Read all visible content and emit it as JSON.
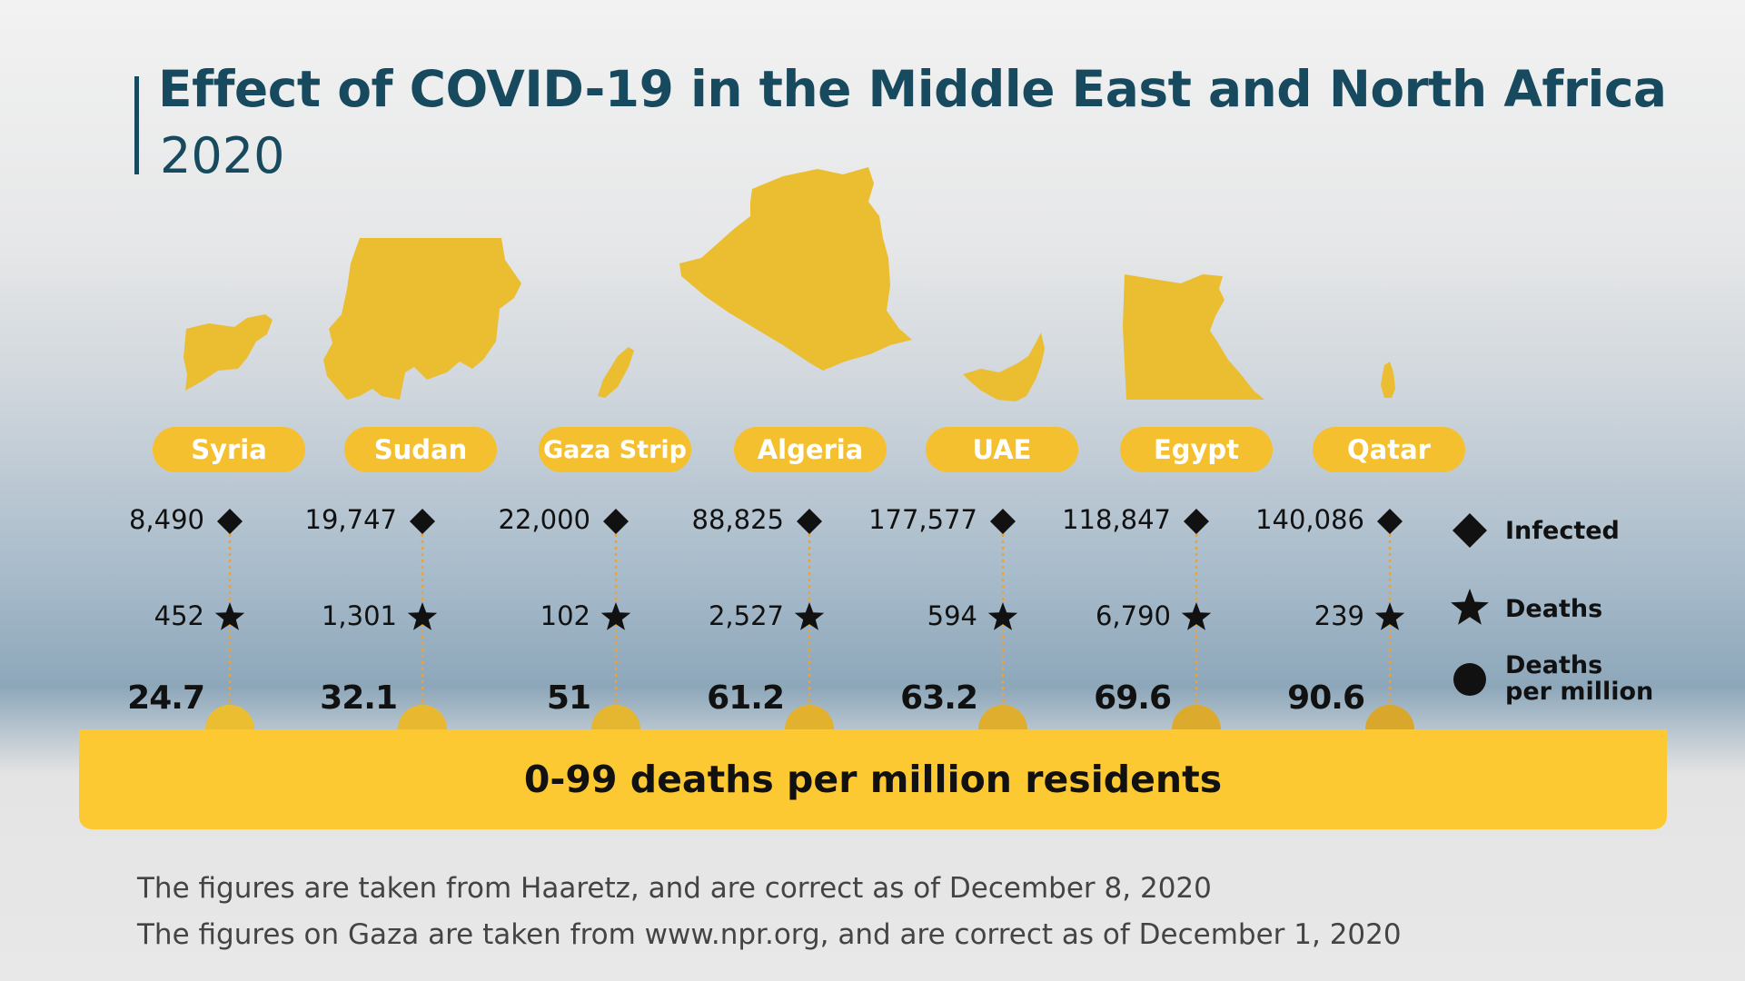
{
  "title": "Effect of COVID-19 in the Middle East and North Africa",
  "subtitle": "2020",
  "chart_data": {
    "type": "table",
    "categories": [
      "Syria",
      "Sudan",
      "Gaza Strip",
      "Algeria",
      "UAE",
      "Egypt",
      "Qatar"
    ],
    "series": [
      {
        "name": "Infected",
        "values": [
          8490,
          19747,
          22000,
          88825,
          177577,
          118847,
          140086
        ],
        "labels": [
          "8,490",
          "19,747",
          "22,000",
          "88,825",
          "177,577",
          "118,847",
          "140,086"
        ]
      },
      {
        "name": "Deaths",
        "values": [
          452,
          1301,
          102,
          2527,
          594,
          6790,
          239
        ],
        "labels": [
          "452",
          "1,301",
          "102",
          "2,527",
          "594",
          "6,790",
          "239"
        ]
      },
      {
        "name": "Deaths per million",
        "values": [
          24.7,
          32.1,
          51,
          61.2,
          63.2,
          69.6,
          90.6
        ],
        "labels": [
          "24.7",
          "32.1",
          "51",
          "61.2",
          "63.2",
          "69.6",
          "90.6"
        ]
      }
    ],
    "legend": {
      "position": "right",
      "items": [
        {
          "symbol": "diamond",
          "label": "Infected"
        },
        {
          "symbol": "star",
          "label": "Deaths"
        },
        {
          "symbol": "circle",
          "label_line1": "Deaths",
          "label_line2": "per million"
        }
      ]
    },
    "band_label": "0-99 deaths per million residents"
  },
  "footer": {
    "line1": "The figures are taken from Haaretz, and are correct as of December 8, 2020",
    "line2": "The figures on Gaza are taken from www.npr.org, and are correct as of December 1, 2020"
  },
  "colors": {
    "title": "#174a5e",
    "map_fill": "#ebbd31",
    "label_bg": "#f4c02f",
    "band": "#fdc932",
    "connector": "#e8a33a",
    "marker": "#111111"
  }
}
